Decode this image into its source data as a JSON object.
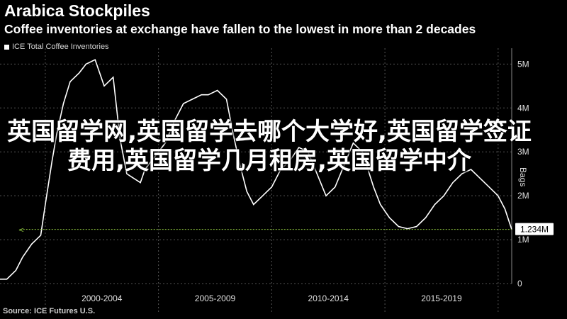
{
  "title": "Arabica Stockpiles",
  "subtitle": "Coffee inventories at exchange have fallen to the lowest in more than 2 decades",
  "legend": "ICE Total Coffee Inventories",
  "source": "Source: ICE Futures U.S.",
  "overlay_text": "英国留学网,英国留学去哪个大学好,英国留学签证费用,英国留学几月租房,英国留学中介",
  "colors": {
    "background": "#000000",
    "line": "#ffffff",
    "grid": "#555555",
    "marker": "#8ec63f"
  },
  "chart_data": {
    "type": "line",
    "ylabel": "Bags",
    "ylim": [
      0,
      5.2
    ],
    "yticks": [
      0,
      1,
      2,
      3,
      4,
      5
    ],
    "ytick_labels": [
      "0",
      "1M",
      "2M",
      "3M",
      "4M",
      "5M"
    ],
    "xlim": [
      1998.0,
      2020.6
    ],
    "x_periods": [
      "2000-2004",
      "2005-2009",
      "2010-2014",
      "2015-2019"
    ],
    "last_value_label": "1.234M",
    "last_value": 1.234,
    "grid": true,
    "legend_position": "top-left",
    "series": [
      {
        "name": "ICE Total Coffee Inventories",
        "x": [
          1998.0,
          1998.3,
          1998.7,
          1999.0,
          1999.4,
          1999.8,
          2000.0,
          2000.3,
          2000.5,
          2000.8,
          2001.1,
          2001.5,
          2001.8,
          2002.2,
          2002.6,
          2003.0,
          2003.3,
          2003.6,
          2003.9,
          2004.2,
          2004.4,
          2004.7,
          2005.0,
          2005.3,
          2005.7,
          2006.1,
          2006.5,
          2006.9,
          2007.2,
          2007.6,
          2008.0,
          2008.3,
          2008.6,
          2008.9,
          2009.2,
          2009.6,
          2010.0,
          2010.4,
          2010.8,
          2011.2,
          2011.6,
          2012.0,
          2012.4,
          2012.8,
          2013.2,
          2013.6,
          2014.0,
          2014.5,
          2014.8,
          2015.2,
          2015.6,
          2016.0,
          2016.4,
          2016.8,
          2017.2,
          2017.6,
          2018.0,
          2018.4,
          2018.8,
          2019.2,
          2019.6,
          2020.0,
          2020.3,
          2020.6
        ],
        "y": [
          0.1,
          0.1,
          0.3,
          0.6,
          0.9,
          1.1,
          1.8,
          2.8,
          3.4,
          4.1,
          4.6,
          4.8,
          5.0,
          5.1,
          4.5,
          4.7,
          3.3,
          2.5,
          2.4,
          2.3,
          2.6,
          2.8,
          3.0,
          3.2,
          3.7,
          4.1,
          4.2,
          4.3,
          4.3,
          4.4,
          4.2,
          3.4,
          2.7,
          2.1,
          1.8,
          2.0,
          2.2,
          2.6,
          2.8,
          3.1,
          3.0,
          2.5,
          2.0,
          2.2,
          2.7,
          3.2,
          3.0,
          2.2,
          1.8,
          1.5,
          1.3,
          1.25,
          1.3,
          1.5,
          1.8,
          2.0,
          2.3,
          2.5,
          2.6,
          2.4,
          2.2,
          2.0,
          1.7,
          1.234
        ]
      }
    ]
  }
}
